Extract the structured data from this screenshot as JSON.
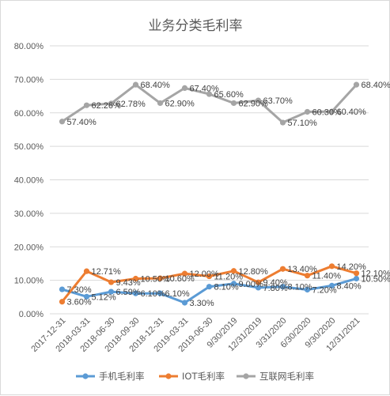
{
  "chart_data": {
    "type": "line",
    "title": "业务分类毛利率",
    "xlabel": "",
    "ylabel": "",
    "ylim": [
      0,
      80
    ],
    "yticks": [
      "0.00%",
      "10.00%",
      "20.00%",
      "30.00%",
      "40.00%",
      "50.00%",
      "60.00%",
      "70.00%",
      "80.00%"
    ],
    "grid": true,
    "legend_position": "bottom",
    "categories": [
      "2017-12-31",
      "2018-03-31",
      "2018-06-30",
      "2018-09-30",
      "2018-12-31",
      "2019-03-31",
      "2019-06-30",
      "9/30/2019",
      "12/31/2019",
      "3/31/2020",
      "6/30/2020",
      "9/30/2020",
      "12/31/2021"
    ],
    "series": [
      {
        "name": "手机毛利率",
        "color": "#5B9BD5",
        "values": [
          7.3,
          5.12,
          6.59,
          6.1,
          6.1,
          3.3,
          8.1,
          9.0,
          7.8,
          8.1,
          7.2,
          8.4,
          10.5
        ],
        "labels": [
          "7.30%",
          "5.12%",
          "6.59%",
          "6.10%",
          "6.10%",
          "3.30%",
          "8.10%",
          "9.00%",
          "7.80%",
          "8.10%",
          "7.20%",
          "8.40%",
          "10.50%"
        ]
      },
      {
        "name": "IOT毛利率",
        "color": "#ED7D31",
        "values": [
          3.6,
          12.71,
          9.43,
          10.5,
          10.6,
          12.0,
          11.2,
          12.8,
          9.4,
          13.4,
          11.4,
          14.2,
          12.1
        ],
        "labels": [
          "3.60%",
          "12.71%",
          "9.43%",
          "10.50%",
          "10.60%",
          "12.00%",
          "11.20%",
          "12.80%",
          "9.40%",
          "13.40%",
          "11.40%",
          "14.20%",
          "12.10%"
        ]
      },
      {
        "name": "互联网毛利率",
        "color": "#A5A5A5",
        "values": [
          57.4,
          62.26,
          62.78,
          68.4,
          62.9,
          67.4,
          65.6,
          62.9,
          63.7,
          57.1,
          60.3,
          60.4,
          68.4
        ],
        "labels": [
          "57.40%",
          "62.26%",
          "62.78%",
          "68.40%",
          "62.90%",
          "67.40%",
          "65.60%",
          "62.90%",
          "63.70%",
          "57.10%",
          "60.30%",
          "60.40%",
          "68.40%"
        ]
      }
    ]
  }
}
